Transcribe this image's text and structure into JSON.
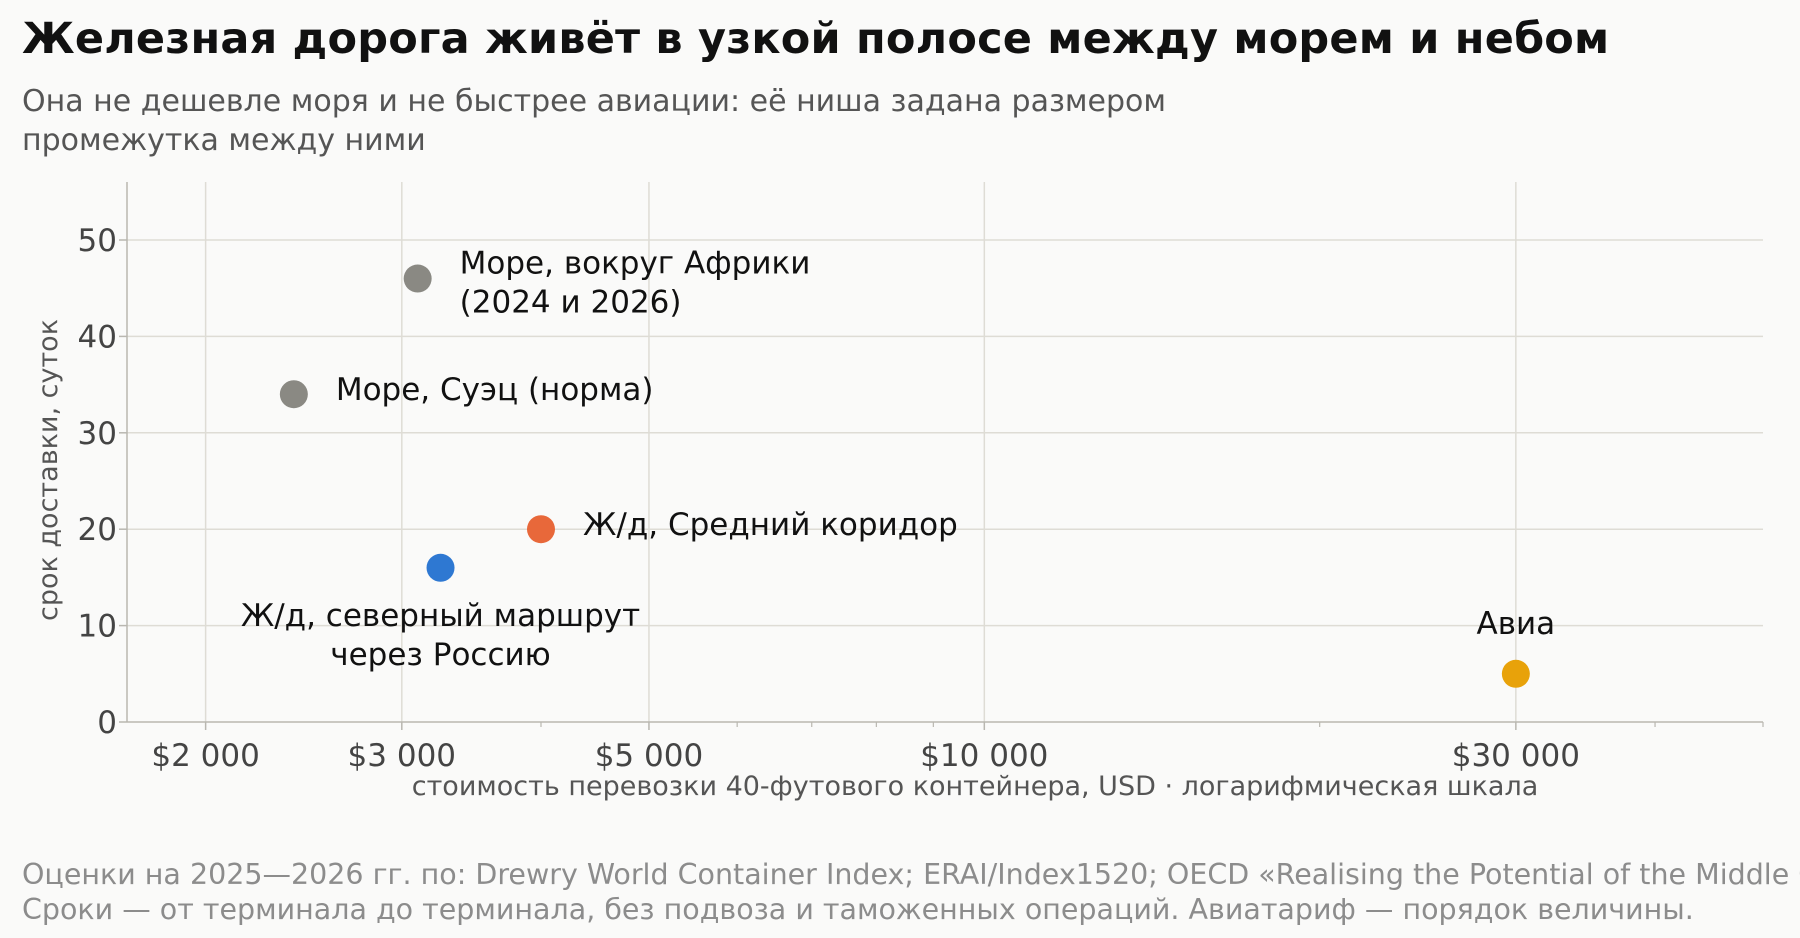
{
  "header": {
    "title": "Железная дорога живёт в узкой полосе между морем и небом",
    "subtitle": "Она не дешевле моря и не быстрее авиации: её ниша задана размером промежутка между ними"
  },
  "chart_data": {
    "type": "scatter",
    "xlabel": "стоимость перевозки 40-футового контейнера, USD · логарифмическая шкала",
    "ylabel": "срок доставки, суток",
    "x_scale": "log",
    "xlim": [
      1700,
      50000
    ],
    "ylim": [
      0,
      50
    ],
    "grid": true,
    "x_ticks": [
      {
        "value": 2000,
        "label": "$2 000"
      },
      {
        "value": 3000,
        "label": "$3 000"
      },
      {
        "value": 5000,
        "label": "$5 000"
      },
      {
        "value": 10000,
        "label": "$10 000"
      },
      {
        "value": 30000,
        "label": "$30 000"
      }
    ],
    "y_ticks": [
      {
        "value": 0,
        "label": "0"
      },
      {
        "value": 10,
        "label": "10"
      },
      {
        "value": 20,
        "label": "20"
      },
      {
        "value": 30,
        "label": "30"
      },
      {
        "value": 40,
        "label": "40"
      },
      {
        "value": 50,
        "label": "50"
      }
    ],
    "points": [
      {
        "label": [
          "Море, вокруг Африки",
          "(2024 и 2026)"
        ],
        "x": 3100,
        "y": 46,
        "color": "#8a8983",
        "label_pos": "right"
      },
      {
        "label": [
          "Море, Суэц (норма)"
        ],
        "x": 2400,
        "y": 34,
        "color": "#8a8983",
        "label_pos": "right"
      },
      {
        "label": [
          "Ж/д, Средний коридор"
        ],
        "x": 4000,
        "y": 20,
        "color": "#e8683a",
        "label_pos": "right"
      },
      {
        "label": [
          "Ж/д, северный маршрут",
          "через Россию"
        ],
        "x": 3250,
        "y": 16,
        "color": "#2e78d2",
        "label_pos": "below"
      },
      {
        "label": [
          "Авиа"
        ],
        "x": 30000,
        "y": 5,
        "color": "#e8a20a",
        "label_pos": "above"
      }
    ],
    "colors": {
      "sea": "#8a8983",
      "rail_middle": "#e8683a",
      "rail_north": "#2e78d2",
      "air": "#e8a20a"
    }
  },
  "footer": {
    "source_line1": "Оценки на 2025—2026 гг. по: Drewry World Container Index; ERAI/Index1520; OECD «Realising the Potential of the Middle Corridor»",
    "source_line2": "Сроки — от терминала до терминала, без подвоза и таможенных операций. Авиатариф — порядок величины."
  }
}
